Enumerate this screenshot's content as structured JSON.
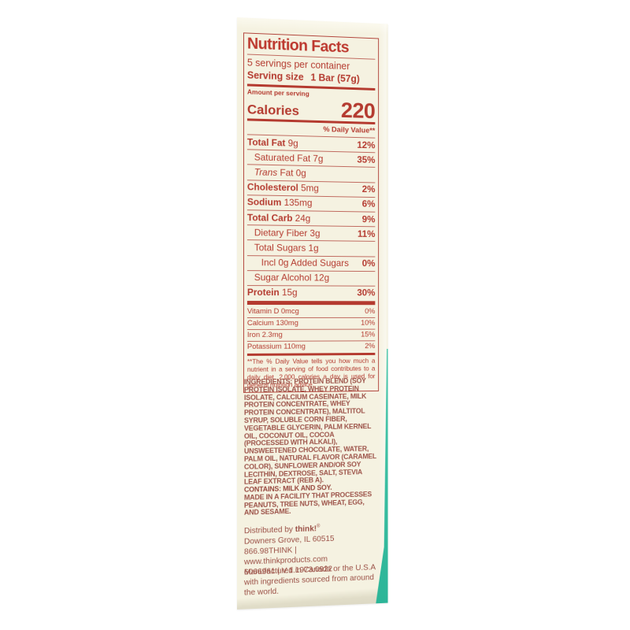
{
  "colors": {
    "label_red": "#b43a2f",
    "body_red": "#9d544a",
    "package_cream": "#f5f2e1",
    "edge_teal": "#35bfa2"
  },
  "panel": {
    "title": "Nutrition Facts",
    "servings": "5 servings per container",
    "serving_size_label": "Serving size",
    "serving_size_value": "1 Bar (57g)",
    "amount_per_serving": "Amount per serving",
    "calories_label": "Calories",
    "calories_value": "220",
    "dv_header": "% Daily Value**",
    "rows": [
      {
        "bold": "Total Fat",
        "text": " 9g",
        "pct": "12%"
      },
      {
        "text": "Saturated Fat 7g",
        "pct": "35%"
      },
      {
        "italic": "Trans",
        "text": " Fat 0g",
        "pct": ""
      },
      {
        "bold": "Cholesterol",
        "text": " 5mg",
        "pct": "2%"
      },
      {
        "bold": "Sodium",
        "text": " 135mg",
        "pct": "6%"
      },
      {
        "bold": "Total Carb",
        "text": " 24g",
        "pct": "9%"
      },
      {
        "text": "Dietary Fiber 3g",
        "pct": "11%"
      },
      {
        "text": "Total Sugars 1g",
        "pct": ""
      },
      {
        "text": "Incl 0g Added Sugars",
        "pct": "0%"
      },
      {
        "text": "Sugar Alcohol 12g",
        "pct": ""
      },
      {
        "bold": "Protein",
        "text": " 15g",
        "pct": "30%"
      }
    ],
    "micros": [
      {
        "text": "Vitamin D 0mcg",
        "pct": "0%"
      },
      {
        "text": "Calcium 130mg",
        "pct": "10%"
      },
      {
        "text": "Iron 2.3mg",
        "pct": "15%"
      },
      {
        "text": "Potassium 110mg",
        "pct": "2%"
      }
    ],
    "footnote": "**The % Daily Value tells you how much a nutrient in a serving of food contributes to a daily diet. 2,000 calories a day is used for general nutrition advice."
  },
  "ingredients": {
    "heading": "INGREDIENTS:",
    "text": "PROTEIN BLEND (SOY PROTEIN ISOLATE, WHEY PROTEIN ISOLATE, CALCIUM CASEINATE, MILK PROTEIN CONCENTRATE, WHEY PROTEIN CONCENTRATE), MALTITOL SYRUP, SOLUBLE CORN FIBER, VEGETABLE GLYCERIN, PALM KERNEL OIL, COCONUT OIL, COCOA (PROCESSED WITH ALKALI), UNSWEETENED CHOCOLATE, WATER, PALM OIL, NATURAL FLAVOR (CARAMEL COLOR), SUNFLOWER AND/OR SOY LECITHIN, DEXTROSE, SALT, STEVIA LEAF EXTRACT (REB A)."
  },
  "allergens": {
    "contains": "CONTAINS: MILK AND SOY.",
    "facility": "MADE IN A FACILITY THAT PROCESSES PEANUTS, TREE NUTS, WHEAT, EGG, AND SESAME."
  },
  "distribution": {
    "prefix": "Distributed by ",
    "brand": "think!",
    "reg": "®",
    "address": "Downers Grove, IL 60515",
    "contact": "866.98THINK | www.thinkproducts.com",
    "code": "6066961 | V.1.1973.0922"
  },
  "manufactured": "Manufactured in Canada or the U.S.A with ingredients sourced from around the world."
}
